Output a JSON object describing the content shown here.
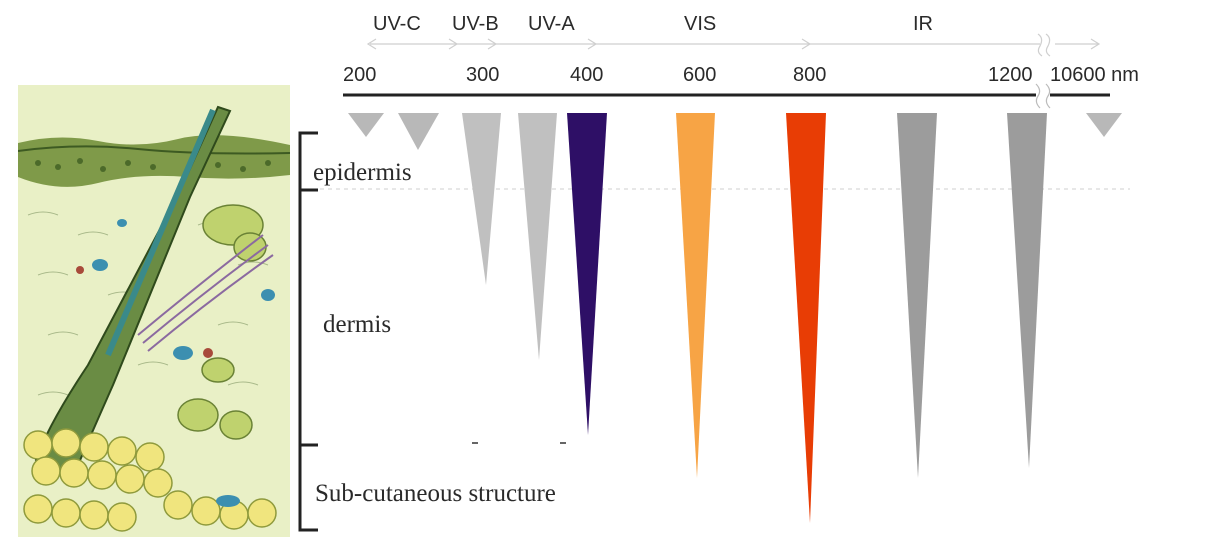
{
  "bands": [
    "UV-C",
    "UV-B",
    "UV-A",
    "VIS",
    "IR"
  ],
  "ticks": [
    "200",
    "300",
    "400",
    "600",
    "800",
    "1200",
    "10600 nm"
  ],
  "layers": [
    "epidermis",
    "dermis",
    "Sub-cutaneous structure"
  ],
  "penetration": [
    {
      "name": "uvc-200",
      "depth": "surface",
      "color": "#b8b8b8"
    },
    {
      "name": "uvc-250",
      "depth": "surface",
      "color": "#b8b8b8"
    },
    {
      "name": "uvb-300",
      "depth": "mid-dermis",
      "color": "#c0c0c0"
    },
    {
      "name": "uva-350",
      "depth": "deep-dermis",
      "color": "#c0c0c0"
    },
    {
      "name": "uva-400",
      "depth": "lower-dermis",
      "color": "#2e0f66"
    },
    {
      "name": "vis-600",
      "depth": "subcutis",
      "color": "#f7a445"
    },
    {
      "name": "vis-800",
      "depth": "deep-subcutis",
      "color": "#e83d05"
    },
    {
      "name": "ir-1000",
      "depth": "subcutis",
      "color": "#9c9c9c"
    },
    {
      "name": "ir-1200",
      "depth": "subcutis",
      "color": "#9c9c9c"
    },
    {
      "name": "ir-10600",
      "depth": "surface",
      "color": "#b8b8b8"
    }
  ]
}
